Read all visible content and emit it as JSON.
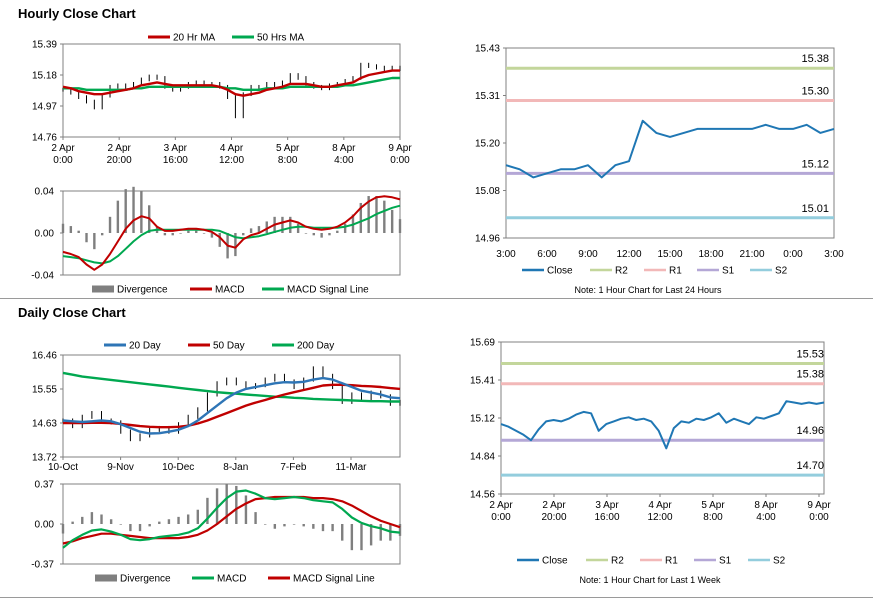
{
  "sections": {
    "hourly_title": "Hourly Close Chart",
    "daily_title": "Daily Close Chart"
  },
  "colors": {
    "red": "#c00000",
    "green": "#00a850",
    "blue": "#2e75b6",
    "gray": "#7f7f7f",
    "r2": "#c3d69b",
    "r1": "#f2b8b8",
    "s1": "#b4a7d6",
    "s2": "#93cddd",
    "close": "#1f77b4"
  },
  "chart_data": [
    {
      "id": "hourly_price",
      "type": "line",
      "title": "",
      "legend": [
        "20 Hr MA",
        "50 Hrs MA"
      ],
      "y_ticks": [
        "15.39",
        "15.18",
        "14.97",
        "14.76"
      ],
      "ylim": [
        14.76,
        15.39
      ],
      "x_ticks": [
        [
          "2 Apr",
          "0:00"
        ],
        [
          "2 Apr",
          "20:00"
        ],
        [
          "3 Apr",
          "16:00"
        ],
        [
          "4 Apr",
          "12:00"
        ],
        [
          "5 Apr",
          "8:00"
        ],
        [
          "8 Apr",
          "4:00"
        ],
        [
          "9 Apr",
          "0:00"
        ]
      ],
      "series": [
        {
          "name": "Close",
          "values": [
            15.08,
            15.06,
            15.03,
            15.0,
            14.96,
            15.04,
            15.1,
            15.11,
            15.1,
            15.12,
            15.15,
            15.17,
            15.16,
            15.1,
            15.08,
            15.1,
            15.12,
            15.13,
            15.11,
            15.12,
            15.1,
            15.03,
            14.9,
            15.05,
            15.1,
            15.09,
            15.12,
            15.11,
            15.13,
            15.18,
            15.16,
            15.12,
            15.1,
            15.09,
            15.11,
            15.12,
            15.14,
            15.16,
            15.25,
            15.24,
            15.23,
            15.22,
            15.23,
            15.22
          ]
        },
        {
          "name": "20 Hr MA",
          "values": [
            15.1,
            15.09,
            15.07,
            15.06,
            15.05,
            15.05,
            15.06,
            15.07,
            15.08,
            15.09,
            15.11,
            15.12,
            15.13,
            15.12,
            15.11,
            15.11,
            15.11,
            15.11,
            15.11,
            15.11,
            15.1,
            15.08,
            15.05,
            15.04,
            15.05,
            15.06,
            15.08,
            15.09,
            15.1,
            15.12,
            15.12,
            15.12,
            15.11,
            15.1,
            15.1,
            15.11,
            15.12,
            15.13,
            15.16,
            15.18,
            15.19,
            15.2,
            15.21,
            15.21
          ]
        },
        {
          "name": "50 Hrs MA",
          "values": [
            15.09,
            15.09,
            15.09,
            15.08,
            15.08,
            15.08,
            15.08,
            15.08,
            15.08,
            15.09,
            15.09,
            15.1,
            15.1,
            15.1,
            15.1,
            15.1,
            15.1,
            15.1,
            15.1,
            15.1,
            15.1,
            15.09,
            15.09,
            15.08,
            15.08,
            15.08,
            15.09,
            15.09,
            15.09,
            15.1,
            15.1,
            15.1,
            15.1,
            15.1,
            15.1,
            15.1,
            15.11,
            15.11,
            15.12,
            15.13,
            15.14,
            15.15,
            15.16,
            15.16
          ]
        }
      ]
    },
    {
      "id": "hourly_macd",
      "type": "line",
      "legend": [
        "Divergence",
        "MACD",
        "MACD Signal Line"
      ],
      "y_ticks": [
        "0.04",
        "0.00",
        "-0.04"
      ],
      "ylim": [
        -0.04,
        0.04
      ],
      "series": [
        {
          "name": "MACD",
          "values": [
            -0.018,
            -0.02,
            -0.023,
            -0.03,
            -0.035,
            -0.03,
            -0.02,
            -0.008,
            0.004,
            0.012,
            0.016,
            0.014,
            0.006,
            0.002,
            0.002,
            0.003,
            0.004,
            0.004,
            0.003,
            0.001,
            -0.004,
            -0.012,
            -0.014,
            -0.006,
            -0.002,
            0.0,
            0.004,
            0.008,
            0.01,
            0.012,
            0.01,
            0.006,
            0.004,
            0.003,
            0.004,
            0.006,
            0.01,
            0.016,
            0.024,
            0.03,
            0.034,
            0.035,
            0.034,
            0.032
          ]
        },
        {
          "name": "MACD Signal Line",
          "values": [
            -0.022,
            -0.023,
            -0.024,
            -0.026,
            -0.028,
            -0.029,
            -0.027,
            -0.022,
            -0.015,
            -0.008,
            -0.002,
            0.002,
            0.003,
            0.003,
            0.003,
            0.003,
            0.003,
            0.003,
            0.003,
            0.003,
            0.002,
            -0.001,
            -0.004,
            -0.005,
            -0.004,
            -0.003,
            -0.001,
            0.001,
            0.003,
            0.005,
            0.006,
            0.006,
            0.005,
            0.005,
            0.005,
            0.005,
            0.006,
            0.008,
            0.011,
            0.014,
            0.018,
            0.021,
            0.024,
            0.026
          ]
        }
      ]
    },
    {
      "id": "hourly_levels",
      "type": "line",
      "legend": [
        "Close",
        "R2",
        "R1",
        "S1",
        "S2"
      ],
      "note": "Note: 1 Hour Chart for Last 24 Hours",
      "y_ticks": [
        "15.43",
        "15.31",
        "15.20",
        "15.08",
        "14.96"
      ],
      "ylim": [
        14.96,
        15.43
      ],
      "x_ticks": [
        "3:00",
        "6:00",
        "9:00",
        "12:00",
        "15:00",
        "18:00",
        "21:00",
        "0:00",
        "3:00"
      ],
      "levels": [
        {
          "name": "R2",
          "value": 15.38,
          "label": "15.38"
        },
        {
          "name": "R1",
          "value": 15.3,
          "label": "15.30"
        },
        {
          "name": "S1",
          "value": 15.12,
          "label": "15.12"
        },
        {
          "name": "S2",
          "value": 15.01,
          "label": "15.01"
        }
      ],
      "series": [
        {
          "name": "Close",
          "values": [
            15.14,
            15.13,
            15.11,
            15.12,
            15.13,
            15.13,
            15.14,
            15.11,
            15.14,
            15.15,
            15.25,
            15.22,
            15.21,
            15.22,
            15.23,
            15.23,
            15.23,
            15.23,
            15.23,
            15.24,
            15.23,
            15.23,
            15.24,
            15.22,
            15.23
          ]
        }
      ]
    },
    {
      "id": "daily_price",
      "type": "line",
      "legend": [
        "20 Day",
        "50 Day",
        "200 Day"
      ],
      "y_ticks": [
        "16.46",
        "15.55",
        "14.63",
        "13.72"
      ],
      "ylim": [
        13.72,
        16.46
      ],
      "x_ticks": [
        "10-Oct",
        "9-Nov",
        "10-Dec",
        "8-Jan",
        "7-Feb",
        "11-Mar"
      ],
      "series": [
        {
          "name": "Close",
          "values": [
            14.7,
            14.55,
            14.8,
            14.9,
            14.7,
            14.65,
            14.4,
            14.2,
            14.3,
            14.45,
            14.5,
            14.4,
            14.6,
            14.8,
            15.0,
            15.4,
            15.7,
            15.8,
            15.7,
            15.6,
            15.65,
            15.8,
            15.9,
            15.75,
            15.6,
            15.8,
            16.1,
            15.9,
            15.6,
            15.2,
            15.4,
            15.3,
            15.45,
            15.35,
            15.15,
            15.2
          ]
        },
        {
          "name": "20 Day",
          "values": [
            14.7,
            14.68,
            14.66,
            14.68,
            14.7,
            14.68,
            14.6,
            14.5,
            14.4,
            14.35,
            14.36,
            14.4,
            14.45,
            14.55,
            14.7,
            14.9,
            15.1,
            15.3,
            15.45,
            15.55,
            15.6,
            15.65,
            15.7,
            15.73,
            15.72,
            15.74,
            15.8,
            15.84,
            15.8,
            15.7,
            15.6,
            15.5,
            15.45,
            15.4,
            15.32,
            15.3
          ]
        },
        {
          "name": "50 Day",
          "values": [
            14.63,
            14.63,
            14.63,
            14.64,
            14.64,
            14.63,
            14.61,
            14.58,
            14.55,
            14.53,
            14.52,
            14.52,
            14.53,
            14.56,
            14.62,
            14.7,
            14.8,
            14.9,
            15.0,
            15.1,
            15.18,
            15.25,
            15.33,
            15.4,
            15.46,
            15.52,
            15.58,
            15.64,
            15.66,
            15.66,
            15.65,
            15.63,
            15.62,
            15.6,
            15.57,
            15.55
          ]
        },
        {
          "name": "200 Day",
          "values": [
            15.98,
            15.93,
            15.88,
            15.85,
            15.82,
            15.79,
            15.76,
            15.73,
            15.7,
            15.67,
            15.64,
            15.61,
            15.58,
            15.55,
            15.52,
            15.49,
            15.46,
            15.44,
            15.42,
            15.4,
            15.38,
            15.36,
            15.34,
            15.33,
            15.31,
            15.3,
            15.28,
            15.27,
            15.26,
            15.25,
            15.24,
            15.23,
            15.22,
            15.22,
            15.21,
            15.21
          ]
        }
      ]
    },
    {
      "id": "daily_macd",
      "type": "line",
      "legend": [
        "Divergence",
        "MACD",
        "MACD Signal Line"
      ],
      "y_ticks": [
        "0.37",
        "0.00",
        "-0.37"
      ],
      "ylim": [
        -0.37,
        0.37
      ],
      "series": [
        {
          "name": "MACD",
          "values": [
            -0.22,
            -0.15,
            -0.1,
            -0.06,
            -0.05,
            -0.07,
            -0.1,
            -0.14,
            -0.15,
            -0.14,
            -0.12,
            -0.11,
            -0.1,
            -0.08,
            -0.04,
            0.05,
            0.15,
            0.24,
            0.3,
            0.31,
            0.28,
            0.24,
            0.23,
            0.24,
            0.25,
            0.24,
            0.22,
            0.21,
            0.2,
            0.14,
            0.06,
            0.01,
            -0.02,
            -0.04,
            -0.07,
            -0.08
          ]
        },
        {
          "name": "MACD Signal Line",
          "values": [
            -0.18,
            -0.16,
            -0.13,
            -0.11,
            -0.09,
            -0.09,
            -0.1,
            -0.11,
            -0.12,
            -0.13,
            -0.13,
            -0.13,
            -0.13,
            -0.12,
            -0.1,
            -0.06,
            0.0,
            0.07,
            0.14,
            0.19,
            0.23,
            0.24,
            0.25,
            0.25,
            0.25,
            0.25,
            0.24,
            0.24,
            0.23,
            0.21,
            0.17,
            0.12,
            0.07,
            0.03,
            0.0,
            -0.03
          ]
        }
      ]
    },
    {
      "id": "daily_levels",
      "type": "line",
      "legend": [
        "Close",
        "R2",
        "R1",
        "S1",
        "S2"
      ],
      "note": "Note: 1 Hour Chart for Last 1 Week",
      "y_ticks": [
        "15.69",
        "15.41",
        "15.12",
        "14.84",
        "14.56"
      ],
      "ylim": [
        14.56,
        15.69
      ],
      "x_ticks": [
        [
          "2 Apr",
          "0:00"
        ],
        [
          "2 Apr",
          "20:00"
        ],
        [
          "3 Apr",
          "16:00"
        ],
        [
          "4 Apr",
          "12:00"
        ],
        [
          "5 Apr",
          "8:00"
        ],
        [
          "8 Apr",
          "4:00"
        ],
        [
          "9 Apr",
          "0:00"
        ]
      ],
      "levels": [
        {
          "name": "R2",
          "value": 15.53,
          "label": "15.53"
        },
        {
          "name": "R1",
          "value": 15.38,
          "label": "15.38"
        },
        {
          "name": "S1",
          "value": 14.96,
          "label": "14.96"
        },
        {
          "name": "S2",
          "value": 14.7,
          "label": "14.70"
        }
      ],
      "series": [
        {
          "name": "Close",
          "values": [
            15.08,
            15.06,
            15.03,
            15.0,
            14.96,
            15.04,
            15.1,
            15.11,
            15.1,
            15.12,
            15.15,
            15.17,
            15.16,
            15.03,
            15.08,
            15.1,
            15.12,
            15.13,
            15.11,
            15.12,
            15.1,
            15.03,
            14.9,
            15.05,
            15.1,
            15.09,
            15.12,
            15.11,
            15.13,
            15.16,
            15.09,
            15.12,
            15.1,
            15.08,
            15.13,
            15.12,
            15.14,
            15.16,
            15.25,
            15.24,
            15.23,
            15.24,
            15.23,
            15.24
          ]
        }
      ]
    }
  ]
}
